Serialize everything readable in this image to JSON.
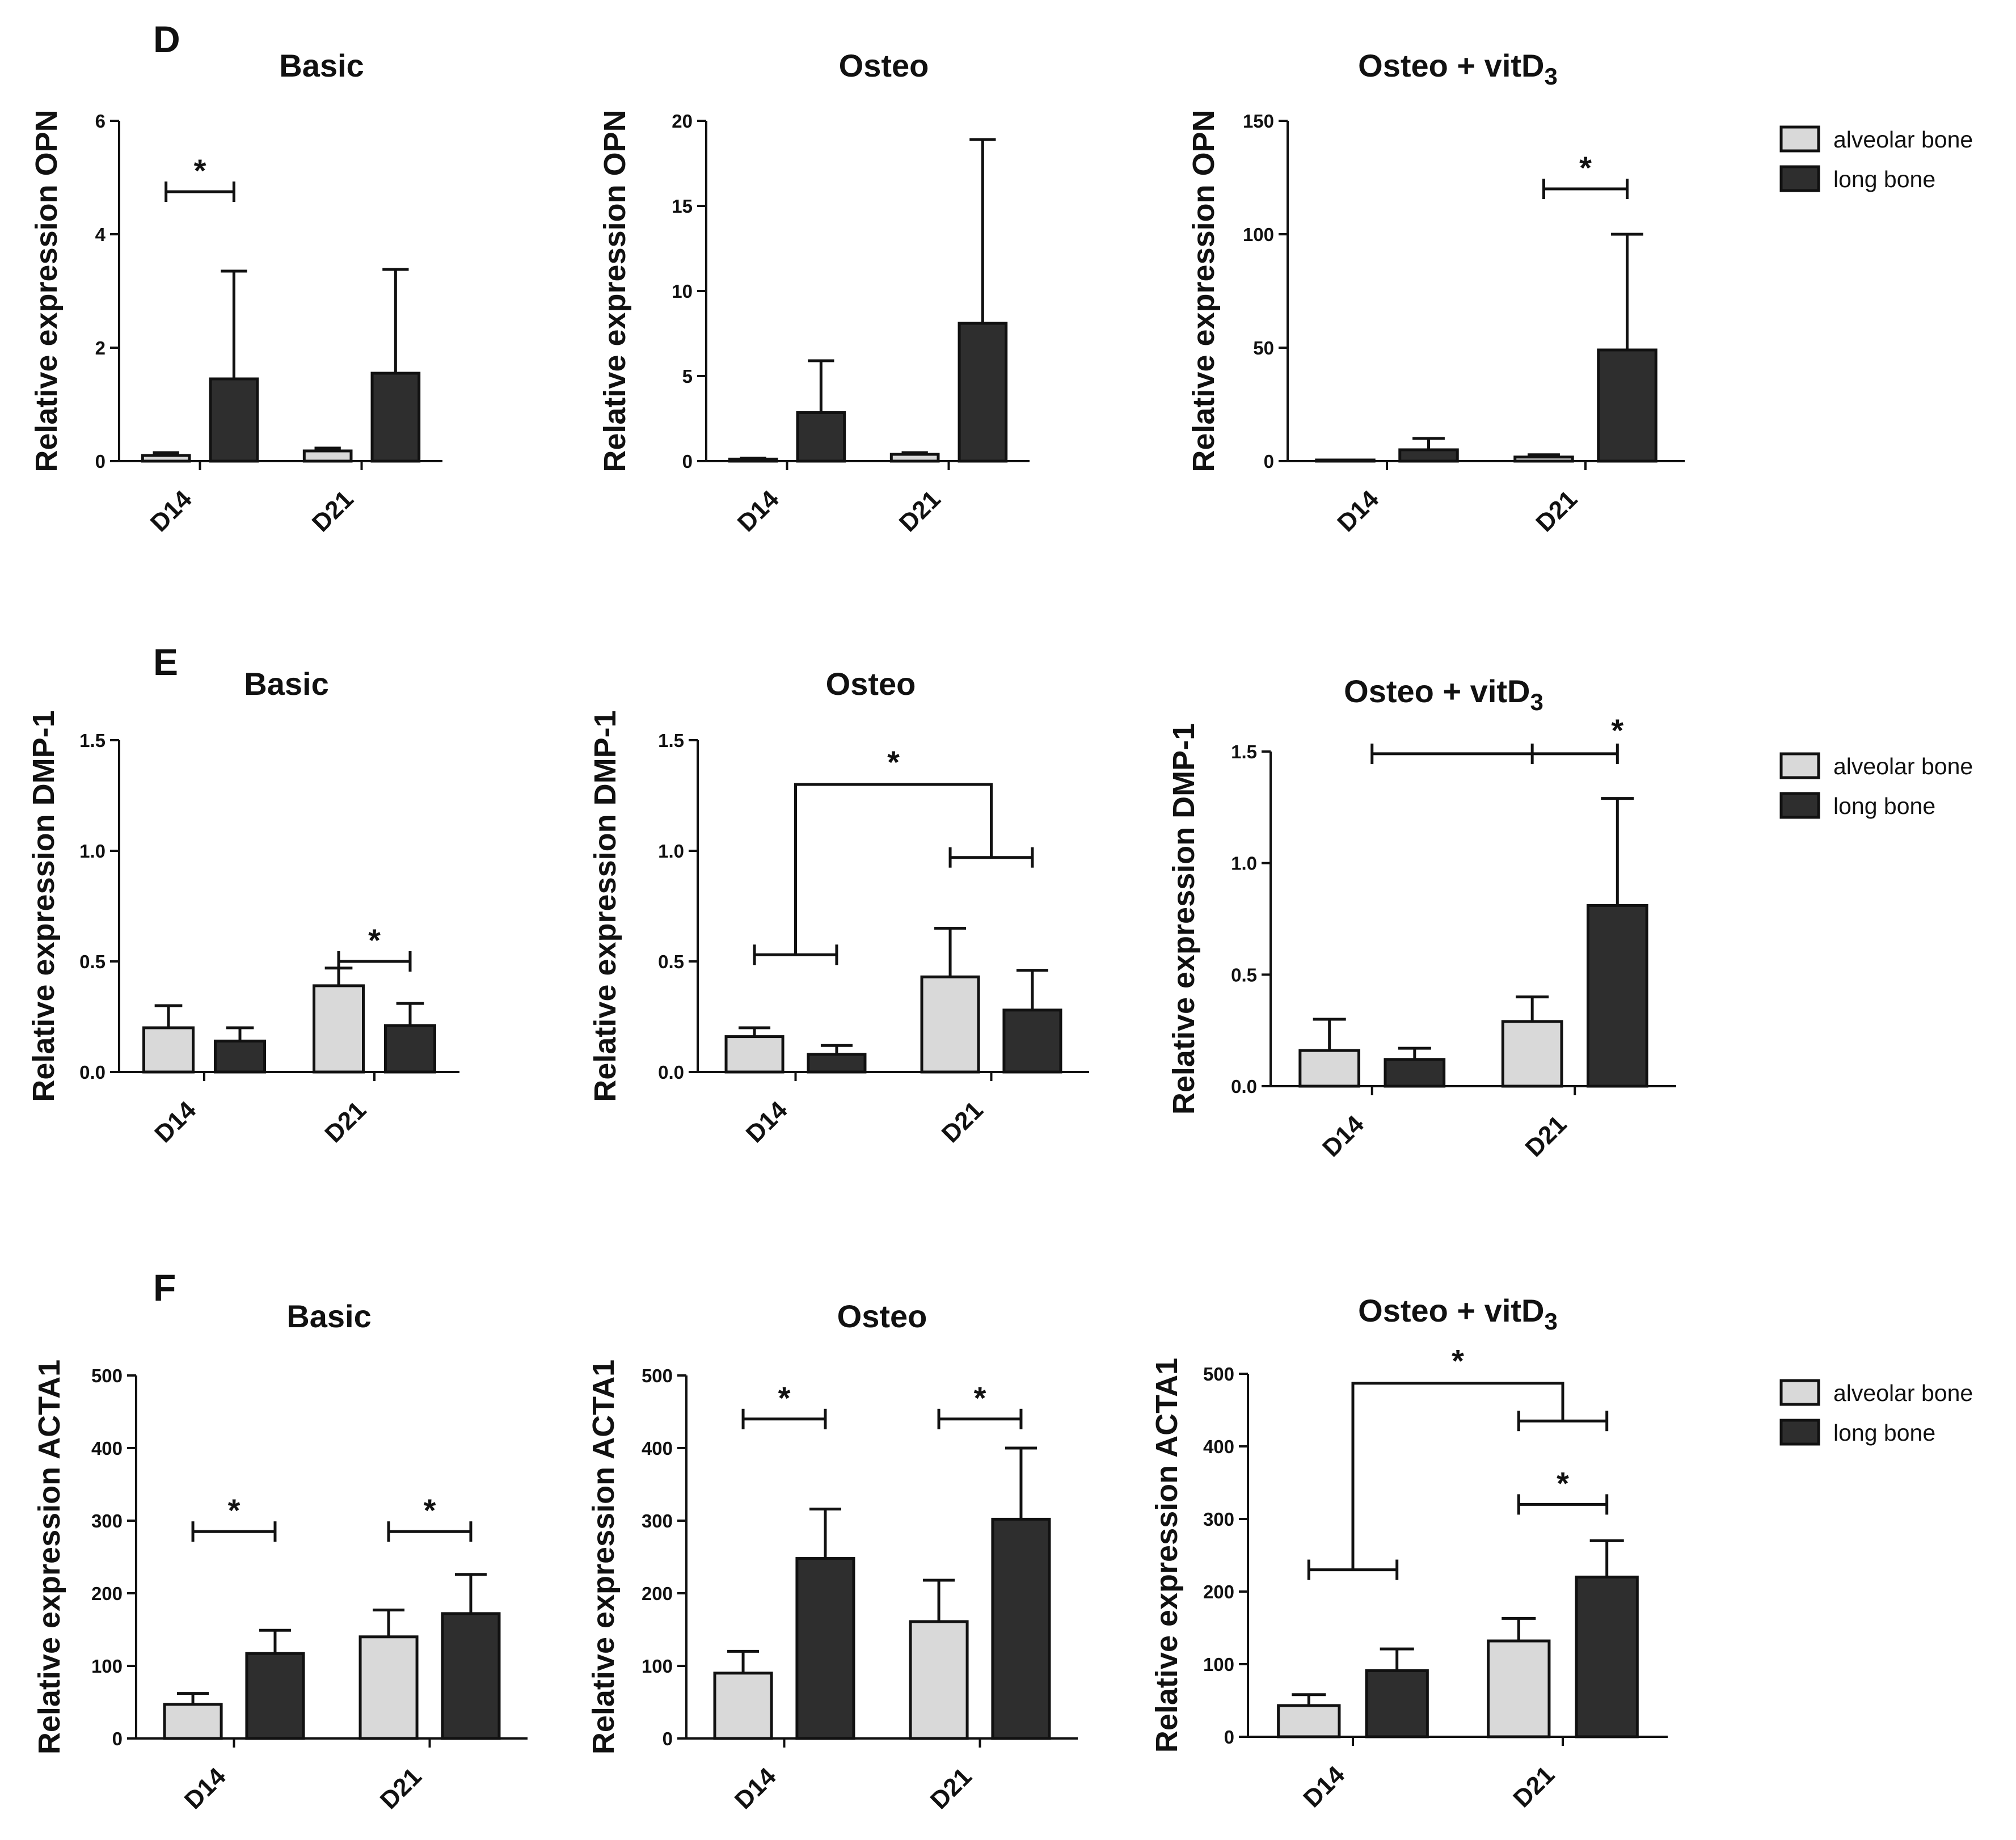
{
  "colors": {
    "alveolar": "#d9d9d9",
    "long": "#2e2e2e",
    "stroke": "#111111"
  },
  "legend_labels": {
    "alveolar": "alveolar bone",
    "long": "long bone"
  },
  "rows": [
    {
      "panel": "D",
      "charts": [
        {
          "title": "Basic",
          "ylabel": "Relative expression OPN",
          "ylim": [
            0,
            6
          ],
          "yticks": [
            "0",
            "2",
            "4",
            "6"
          ],
          "categories": [
            "D14",
            "D21"
          ],
          "alveolar": [
            0.1,
            0.18
          ],
          "alveolar_err": [
            0.05,
            0.05
          ],
          "long": [
            1.45,
            1.55
          ],
          "long_err": [
            1.9,
            1.83
          ],
          "brackets": [
            {
              "type": "pair",
              "group": 0,
              "y": 4.75,
              "star": "*"
            }
          ]
        },
        {
          "title": "Osteo",
          "ylabel": "Relative expression OPN",
          "ylim": [
            0,
            20
          ],
          "yticks": [
            "0",
            "5",
            "10",
            "15",
            "20"
          ],
          "categories": [
            "D14",
            "D21"
          ],
          "alveolar": [
            0.12,
            0.4
          ],
          "alveolar_err": [
            0.05,
            0.1
          ],
          "long": [
            2.85,
            8.1
          ],
          "long_err": [
            3.05,
            10.8
          ],
          "brackets": []
        },
        {
          "title": "Osteo + vitD",
          "title_sub": "3",
          "ylabel": "Relative expression OPN",
          "ylim": [
            0,
            150
          ],
          "yticks": [
            "0",
            "50",
            "100",
            "150"
          ],
          "categories": [
            "D14",
            "D21"
          ],
          "alveolar": [
            0.3,
            1.8
          ],
          "alveolar_err": [
            0.2,
            1.0
          ],
          "long": [
            5,
            49
          ],
          "long_err": [
            5,
            51
          ],
          "brackets": [
            {
              "type": "pair",
              "group": 1,
              "y": 120,
              "star": "*"
            }
          ]
        }
      ],
      "legend": true
    },
    {
      "panel": "E",
      "charts": [
        {
          "title": "Basic",
          "ylabel": "Relative expression DMP-1",
          "ylim": [
            0,
            1.5
          ],
          "yticks": [
            "0.0",
            "0.5",
            "1.0",
            "1.5"
          ],
          "categories": [
            "D14",
            "D21"
          ],
          "alveolar": [
            0.2,
            0.39
          ],
          "alveolar_err": [
            0.1,
            0.08
          ],
          "long": [
            0.14,
            0.21
          ],
          "long_err": [
            0.06,
            0.1
          ],
          "brackets": [
            {
              "type": "pair",
              "group": 1,
              "y": 0.5,
              "star": "*"
            }
          ]
        },
        {
          "title": "Osteo",
          "ylabel": "Relative expression DMP-1",
          "ylim": [
            0,
            1.5
          ],
          "yticks": [
            "0.0",
            "0.5",
            "1.0",
            "1.5"
          ],
          "categories": [
            "D14",
            "D21"
          ],
          "alveolar": [
            0.16,
            0.43
          ],
          "alveolar_err": [
            0.04,
            0.22
          ],
          "long": [
            0.08,
            0.28
          ],
          "long_err": [
            0.04,
            0.18
          ],
          "brackets": [
            {
              "type": "groups",
              "left_y": 0.53,
              "right_y": 0.97,
              "top_y": 1.3,
              "star": "*"
            }
          ]
        },
        {
          "title": "Osteo + vitD",
          "title_sub": "3",
          "ylabel": "Relative expression DMP-1",
          "ylim": [
            0,
            1.5
          ],
          "yticks": [
            "0.0",
            "0.5",
            "1.0",
            "1.5"
          ],
          "categories": [
            "D14",
            "D21"
          ],
          "alveolar": [
            0.16,
            0.29
          ],
          "alveolar_err": [
            0.14,
            0.11
          ],
          "long": [
            0.12,
            0.81
          ],
          "long_err": [
            0.05,
            0.48
          ],
          "brackets": [
            {
              "type": "pair_center",
              "from_group": 0,
              "group": 1,
              "y": 1.49,
              "star": "*"
            }
          ]
        }
      ],
      "legend": true
    },
    {
      "panel": "F",
      "charts": [
        {
          "title": "Basic",
          "ylabel": "Relative expression ACTA1",
          "ylim": [
            0,
            500
          ],
          "yticks": [
            "0",
            "100",
            "200",
            "300",
            "400",
            "500"
          ],
          "categories": [
            "D14",
            "D21"
          ],
          "alveolar": [
            47,
            140
          ],
          "alveolar_err": [
            15,
            37
          ],
          "long": [
            117,
            172
          ],
          "long_err": [
            32,
            54
          ],
          "brackets": [
            {
              "type": "pair",
              "group": 0,
              "y": 285,
              "star": "*"
            },
            {
              "type": "pair",
              "group": 1,
              "y": 285,
              "star": "*"
            }
          ]
        },
        {
          "title": "Osteo",
          "ylabel": "Relative expression ACTA1",
          "ylim": [
            0,
            500
          ],
          "yticks": [
            "0",
            "100",
            "200",
            "300",
            "400",
            "500"
          ],
          "categories": [
            "D14",
            "D21"
          ],
          "alveolar": [
            90,
            161
          ],
          "alveolar_err": [
            30,
            57
          ],
          "long": [
            248,
            302
          ],
          "long_err": [
            68,
            98
          ],
          "brackets": [
            {
              "type": "pair",
              "group": 0,
              "y": 440,
              "star": "*"
            },
            {
              "type": "pair",
              "group": 1,
              "y": 440,
              "star": "*"
            }
          ]
        },
        {
          "title": "Osteo + vitD",
          "title_sub": "3",
          "ylabel": "Relative expression ACTA1",
          "ylim": [
            0,
            500
          ],
          "yticks": [
            "0",
            "100",
            "200",
            "300",
            "400",
            "500"
          ],
          "categories": [
            "D14",
            "D21"
          ],
          "alveolar": [
            43,
            132
          ],
          "alveolar_err": [
            15,
            31
          ],
          "long": [
            91,
            220
          ],
          "long_err": [
            30,
            50
          ],
          "brackets": [
            {
              "type": "groups",
              "left_y": 230,
              "right_y": 435,
              "top_y": 487,
              "star": "*"
            },
            {
              "type": "pair",
              "group": 1,
              "y": 320,
              "star": "*"
            }
          ]
        }
      ],
      "legend": true
    }
  ],
  "chart_data": [
    {
      "panel": "D",
      "type": "bar",
      "title": "Basic",
      "ylabel": "Relative expression OPN",
      "ylim": [
        0,
        6
      ],
      "categories": [
        "D14",
        "D21"
      ],
      "series": [
        {
          "name": "alveolar bone",
          "values": [
            0.1,
            0.18
          ],
          "err": [
            0.05,
            0.05
          ]
        },
        {
          "name": "long bone",
          "values": [
            1.45,
            1.55
          ],
          "err": [
            1.9,
            1.83
          ]
        }
      ],
      "significance": [
        "D14: alveolar vs long *"
      ]
    },
    {
      "panel": "D",
      "type": "bar",
      "title": "Osteo",
      "ylabel": "Relative expression OPN",
      "ylim": [
        0,
        20
      ],
      "categories": [
        "D14",
        "D21"
      ],
      "series": [
        {
          "name": "alveolar bone",
          "values": [
            0.12,
            0.4
          ],
          "err": [
            0.05,
            0.1
          ]
        },
        {
          "name": "long bone",
          "values": [
            2.85,
            8.1
          ],
          "err": [
            3.05,
            10.8
          ]
        }
      ]
    },
    {
      "panel": "D",
      "type": "bar",
      "title": "Osteo + vitD3",
      "ylabel": "Relative expression OPN",
      "ylim": [
        0,
        150
      ],
      "categories": [
        "D14",
        "D21"
      ],
      "series": [
        {
          "name": "alveolar bone",
          "values": [
            0.3,
            1.8
          ],
          "err": [
            0.2,
            1.0
          ]
        },
        {
          "name": "long bone",
          "values": [
            5,
            49
          ],
          "err": [
            5,
            51
          ]
        }
      ],
      "significance": [
        "D21: alveolar vs long *"
      ]
    },
    {
      "panel": "E",
      "type": "bar",
      "title": "Basic",
      "ylabel": "Relative expression DMP-1",
      "ylim": [
        0,
        1.5
      ],
      "categories": [
        "D14",
        "D21"
      ],
      "series": [
        {
          "name": "alveolar bone",
          "values": [
            0.2,
            0.39
          ],
          "err": [
            0.1,
            0.08
          ]
        },
        {
          "name": "long bone",
          "values": [
            0.14,
            0.21
          ],
          "err": [
            0.06,
            0.1
          ]
        }
      ],
      "significance": [
        "D21: alveolar vs long *"
      ]
    },
    {
      "panel": "E",
      "type": "bar",
      "title": "Osteo",
      "ylabel": "Relative expression DMP-1",
      "ylim": [
        0,
        1.5
      ],
      "categories": [
        "D14",
        "D21"
      ],
      "series": [
        {
          "name": "alveolar bone",
          "values": [
            0.16,
            0.43
          ],
          "err": [
            0.04,
            0.22
          ]
        },
        {
          "name": "long bone",
          "values": [
            0.08,
            0.28
          ],
          "err": [
            0.04,
            0.18
          ]
        }
      ],
      "significance": [
        "D14 vs D21 *"
      ]
    },
    {
      "panel": "E",
      "type": "bar",
      "title": "Osteo + vitD3",
      "ylabel": "Relative expression DMP-1",
      "ylim": [
        0,
        1.5
      ],
      "categories": [
        "D14",
        "D21"
      ],
      "series": [
        {
          "name": "alveolar bone",
          "values": [
            0.16,
            0.29
          ],
          "err": [
            0.14,
            0.11
          ]
        },
        {
          "name": "long bone",
          "values": [
            0.12,
            0.81
          ],
          "err": [
            0.05,
            0.48
          ]
        }
      ],
      "significance": [
        "long bone D14 vs D21 *"
      ]
    },
    {
      "panel": "F",
      "type": "bar",
      "title": "Basic",
      "ylabel": "Relative expression ACTA1",
      "ylim": [
        0,
        500
      ],
      "categories": [
        "D14",
        "D21"
      ],
      "series": [
        {
          "name": "alveolar bone",
          "values": [
            47,
            140
          ],
          "err": [
            15,
            37
          ]
        },
        {
          "name": "long bone",
          "values": [
            117,
            172
          ],
          "err": [
            32,
            54
          ]
        }
      ],
      "significance": [
        "D14: alveolar vs long *",
        "D21: alveolar vs long *"
      ]
    },
    {
      "panel": "F",
      "type": "bar",
      "title": "Osteo",
      "ylabel": "Relative expression ACTA1",
      "ylim": [
        0,
        500
      ],
      "categories": [
        "D14",
        "D21"
      ],
      "series": [
        {
          "name": "alveolar bone",
          "values": [
            90,
            161
          ],
          "err": [
            30,
            57
          ]
        },
        {
          "name": "long bone",
          "values": [
            248,
            302
          ],
          "err": [
            68,
            98
          ]
        }
      ],
      "significance": [
        "D14: alveolar vs long *",
        "D21: alveolar vs long *"
      ]
    },
    {
      "panel": "F",
      "type": "bar",
      "title": "Osteo + vitD3",
      "ylabel": "Relative expression ACTA1",
      "ylim": [
        0,
        500
      ],
      "categories": [
        "D14",
        "D21"
      ],
      "series": [
        {
          "name": "alveolar bone",
          "values": [
            43,
            132
          ],
          "err": [
            15,
            31
          ]
        },
        {
          "name": "long bone",
          "values": [
            91,
            220
          ],
          "err": [
            30,
            50
          ]
        }
      ],
      "significance": [
        "D14 vs D21 *",
        "D21: alveolar vs long *"
      ]
    }
  ]
}
